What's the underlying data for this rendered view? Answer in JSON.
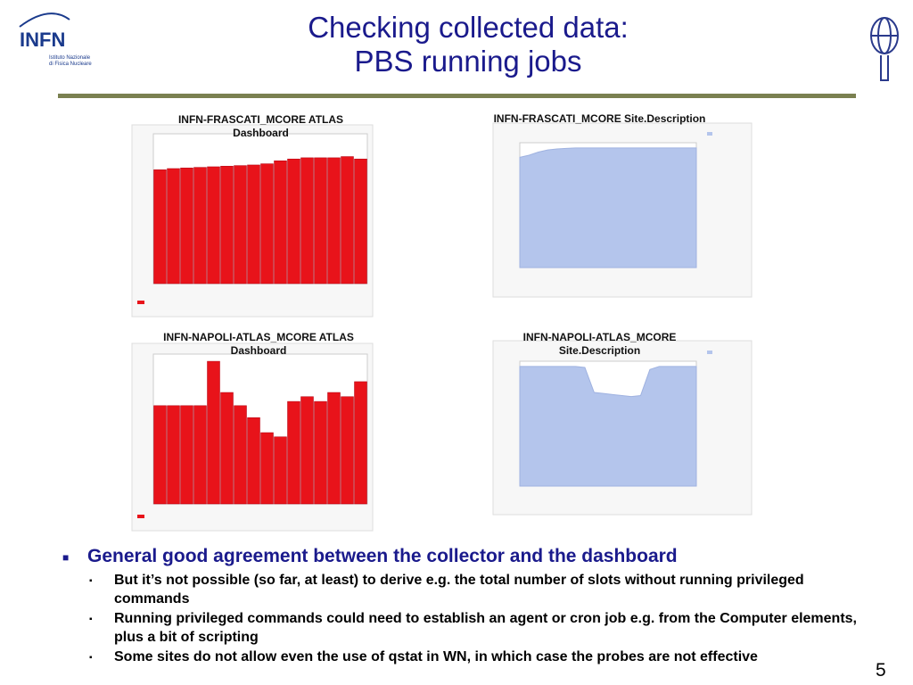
{
  "logo": {
    "name": "INFN",
    "lines": [
      "Istituto Nazionale",
      "di Fisica Nucleare"
    ]
  },
  "header": {
    "title": [
      "Checking collected data:",
      "PBS running jobs"
    ]
  },
  "panels": [
    {
      "label": [
        "INFN-FRASCATI_MCORE ATLAS",
        "Dashboard"
      ],
      "chart": {
        "type": "bar",
        "color": "#e8131a",
        "ylim": [
          0,
          250
        ],
        "values": [
          190,
          192,
          193,
          194,
          195,
          196,
          197,
          198,
          200,
          205,
          208,
          210,
          210,
          210,
          212,
          208
        ]
      }
    },
    {
      "label": [
        "INFN-FRASCATI_MCORE Site.Description"
      ],
      "chart": {
        "type": "area",
        "color": "#b4c5ec",
        "ylim": [
          0,
          1200
        ],
        "values": [
          1060,
          1080,
          1110,
          1130,
          1140,
          1145,
          1150,
          1150,
          1150,
          1150,
          1150,
          1150,
          1150,
          1150,
          1150,
          1150,
          1150,
          1150,
          1150,
          1150
        ]
      }
    },
    {
      "label": [
        "INFN-NAPOLI-ATLAS_MCORE ATLAS",
        "Dashboard"
      ],
      "chart": {
        "type": "bar",
        "color": "#e8131a",
        "ylim": [
          0,
          250
        ],
        "values": [
          164,
          164,
          164,
          164,
          238,
          186,
          164,
          144,
          119,
          112,
          171,
          179,
          171,
          186,
          179,
          204
        ]
      }
    },
    {
      "label": [
        "INFN-NAPOLI-ATLAS_MCORE",
        "Site.Description"
      ],
      "chart": {
        "type": "area",
        "color": "#b4c5ec",
        "ylim": [
          0,
          1200
        ],
        "values": [
          1150,
          1150,
          1150,
          1150,
          1150,
          1150,
          1150,
          1140,
          900,
          890,
          880,
          870,
          860,
          870,
          1120,
          1150,
          1150,
          1150,
          1150,
          1150
        ]
      }
    }
  ],
  "bullets": [
    {
      "text": "General good agreement between the collector and the dashboard",
      "sub": [
        "But it’s not possible (so far, at least) to derive e.g. the total number of slots without running privileged commands",
        "Running privileged commands could need to establish an agent or cron job e.g. from the Computer elements, plus a bit of scripting",
        "Some sites do not allow even the use of qstat in WN, in which case the probes are not effective"
      ]
    }
  ],
  "page_number": 5
}
